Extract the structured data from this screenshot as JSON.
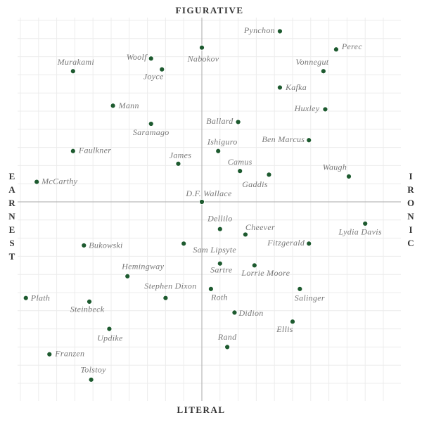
{
  "chart_data": {
    "type": "scatter",
    "top_label": "FIGURATIVE",
    "bottom_label": "LITERAL",
    "left_label": "EARNEST",
    "right_label": "IRONIC",
    "color": "#1d5a2f",
    "grid": true,
    "xlim": [
      -10,
      10
    ],
    "ylim": [
      -10,
      10
    ],
    "xticks": [
      -10,
      -9,
      -8,
      -7,
      -6,
      -5,
      -4,
      -3,
      -2,
      -1,
      0,
      1,
      2,
      3,
      4,
      5,
      6,
      7,
      8,
      9,
      10
    ],
    "yticks": [
      -10,
      -9,
      -8,
      -7,
      -6,
      -5,
      -4,
      -3,
      -2,
      -1,
      0,
      1,
      2,
      3,
      4,
      5,
      6,
      7,
      8,
      9,
      10
    ],
    "labels": [
      "Pynchon",
      "Perec",
      "Nabokov",
      "Woolf",
      "Joyce",
      "Murakami",
      "Vonnegut",
      "Kafka",
      "Mann",
      "Huxley",
      "Ballard",
      "Saramago",
      "Ben Marcus",
      "Faulkner",
      "Ishiguro",
      "James",
      "Camus",
      "Gaddis",
      "Waugh",
      "McCarthy",
      "D.F. Wallace",
      "Lydia Davis",
      "Dellilo",
      "Cheever",
      "Fitzgerald",
      "Bukowski",
      "Sam Lipsyte",
      "Sartre",
      "Lorrie Moore",
      "Hemingway",
      "Salinger",
      "Stephen Dixon",
      "Roth",
      "Plath",
      "Steinbeck",
      "Didion",
      "Ellis",
      "Updike",
      "Rand",
      "Franzen",
      "Tolstoy"
    ],
    "x": [
      4.3,
      7.4,
      0,
      -2.8,
      -2.2,
      -7.1,
      6.7,
      4.3,
      -4.9,
      6.8,
      2.0,
      -2.8,
      5.9,
      -7.1,
      0.9,
      -1.3,
      2.1,
      3.7,
      8.1,
      -9.1,
      0,
      9.0,
      1.0,
      2.4,
      5.9,
      -6.5,
      -1.0,
      1.0,
      2.9,
      -4.1,
      5.4,
      -2.0,
      0.5,
      -9.7,
      -6.2,
      1.8,
      5.0,
      -5.1,
      1.4,
      -8.4,
      -6.1
    ],
    "y": [
      9.4,
      8.4,
      8.5,
      7.9,
      7.3,
      7.2,
      7.2,
      6.3,
      5.3,
      5.1,
      4.4,
      4.3,
      3.4,
      2.8,
      2.8,
      2.1,
      1.7,
      1.5,
      1.4,
      1.1,
      0,
      -1.2,
      -1.5,
      -1.8,
      -2.3,
      -2.4,
      -2.3,
      -3.4,
      -3.5,
      -4.1,
      -4.8,
      -5.3,
      -4.8,
      -5.3,
      -5.5,
      -6.1,
      -6.6,
      -7.0,
      -8.0,
      -8.4,
      -9.8
    ]
  }
}
